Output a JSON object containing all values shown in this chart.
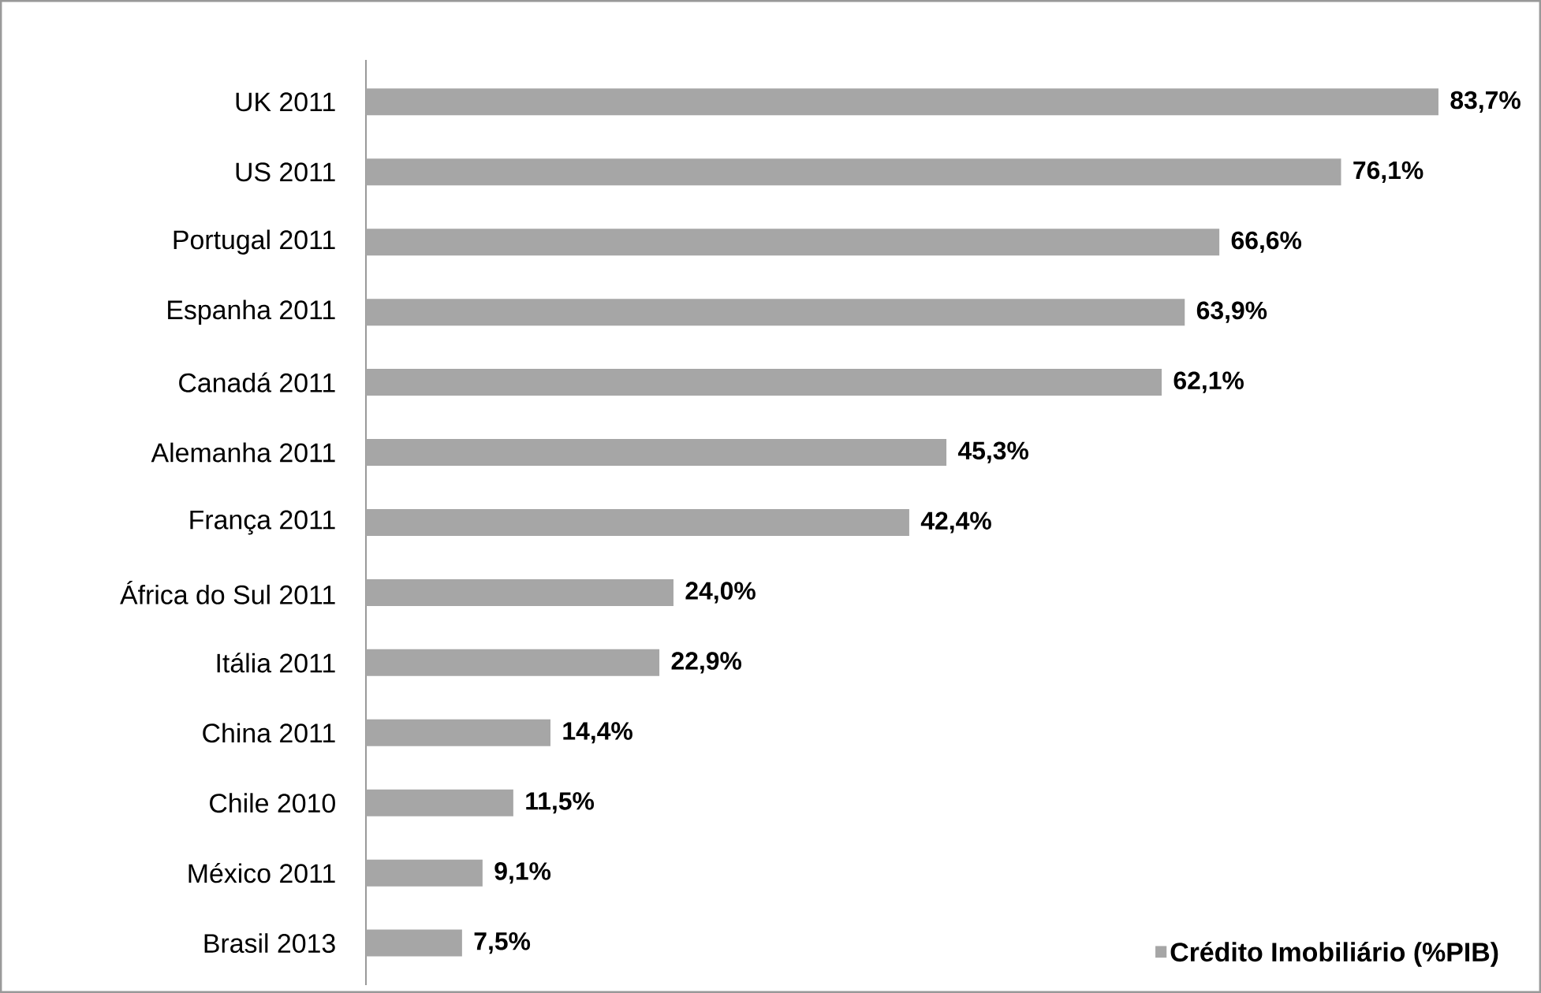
{
  "chart_data": {
    "type": "bar",
    "orientation": "horizontal",
    "categories": [
      "UK 2011",
      "US 2011",
      "Portugal 2011",
      "Espanha 2011",
      "Canadá 2011",
      "Alemanha 2011",
      "França 2011",
      "África do Sul 2011",
      "Itália 2011",
      "China 2011",
      "Chile 2010",
      "México 2011",
      "Brasil 2013"
    ],
    "series": [
      {
        "name": "Crédito Imobiliário (%PIB)",
        "color": "#a6a6a6",
        "values": [
          83.7,
          76.1,
          66.6,
          63.9,
          62.1,
          45.3,
          42.4,
          24.0,
          22.9,
          14.4,
          11.5,
          9.1,
          7.5
        ],
        "value_labels": [
          "83,7%",
          "76,1%",
          "66,6%",
          "63,9%",
          "62,1%",
          "45,3%",
          "42,4%",
          "24,0%",
          "22,9%",
          "14,4%",
          "11,5%",
          "9,1%",
          "7,5%"
        ]
      }
    ],
    "legend": "bottom right"
  }
}
